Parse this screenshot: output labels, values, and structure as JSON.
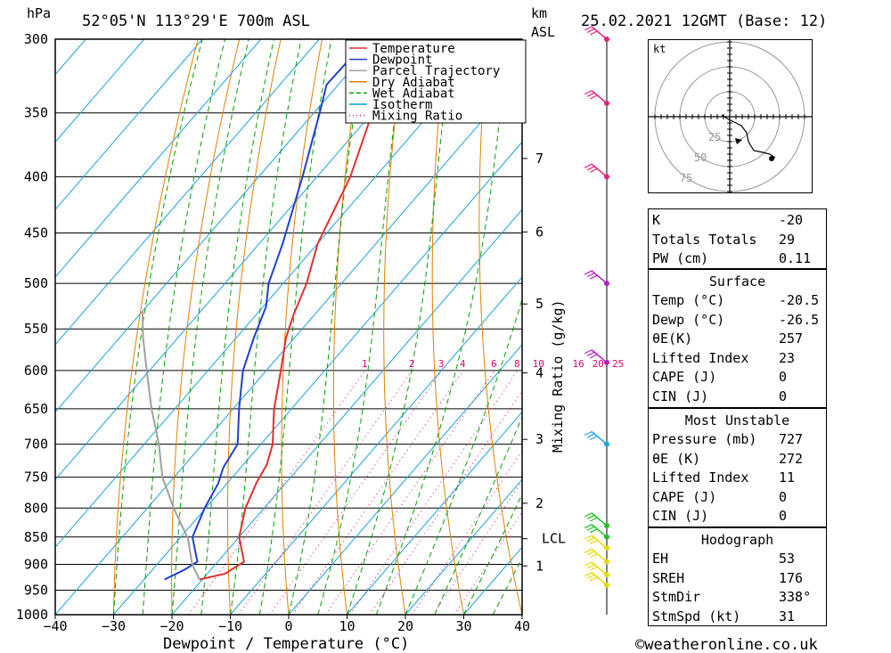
{
  "header": {
    "hpa_label": "hPa",
    "location": "52°05'N  113°29'E  700m  ASL",
    "km_label": "km",
    "asl_label": "ASL",
    "datetime": "25.02.2021  12GMT  (Base: 12)"
  },
  "legend": {
    "items": [
      {
        "label": "Temperature",
        "color": "#e03030",
        "style": "solid"
      },
      {
        "label": "Dewpoint",
        "color": "#2040d0",
        "style": "solid"
      },
      {
        "label": "Parcel Trajectory",
        "color": "#a0a0a0",
        "style": "solid"
      },
      {
        "label": "Dry Adiabat",
        "color": "#e08000",
        "style": "solid"
      },
      {
        "label": "Wet Adiabat",
        "color": "#00a000",
        "style": "dash"
      },
      {
        "label": "Isotherm",
        "color": "#00a0e0",
        "style": "solid"
      },
      {
        "label": "Mixing Ratio",
        "color": "#e0007a",
        "style": "dot"
      }
    ]
  },
  "chart_data": {
    "type": "line",
    "subtype": "skew-T log-P sounding",
    "xlabel": "Dewpoint / Temperature (°C)",
    "ylabel_left": "hPa",
    "ylabel_right": "Mixing Ratio (g/kg)",
    "x_ticks": [
      -40,
      -30,
      -20,
      -10,
      0,
      10,
      20,
      30,
      40
    ],
    "xlim": [
      -40,
      40
    ],
    "pressure_levels": [
      300,
      350,
      400,
      450,
      500,
      550,
      600,
      650,
      700,
      750,
      800,
      850,
      900,
      950,
      1000
    ],
    "ylim": [
      1000,
      300
    ],
    "km_ticks": [
      {
        "km": "1",
        "p": 903
      },
      {
        "km": "2",
        "p": 792
      },
      {
        "km": "3",
        "p": 693
      },
      {
        "km": "4",
        "p": 603
      },
      {
        "km": "5",
        "p": 522
      },
      {
        "km": "6",
        "p": 449
      },
      {
        "km": "7",
        "p": 385
      }
    ],
    "lcl": {
      "label": "LCL",
      "p": 853
    },
    "mixing_ratio_labels": [
      "1",
      "2",
      "3",
      "4",
      "6",
      "8",
      "10",
      "16",
      "20",
      "25"
    ],
    "series": [
      {
        "name": "Temperature",
        "color": "#e03030",
        "points": [
          [
            -20.5,
            929
          ],
          [
            -17,
            918
          ],
          [
            -15.5,
            895
          ],
          [
            -20,
            850
          ],
          [
            -23.2,
            800
          ],
          [
            -25,
            760
          ],
          [
            -26,
            730
          ],
          [
            -28,
            700
          ],
          [
            -33,
            650
          ],
          [
            -37.5,
            600
          ],
          [
            -41.5,
            560
          ],
          [
            -43.5,
            535
          ],
          [
            -46,
            500
          ],
          [
            -50,
            460
          ],
          [
            -54.3,
            400
          ],
          [
            -60,
            350
          ],
          [
            -62.5,
            330
          ],
          [
            -63,
            300
          ]
        ]
      },
      {
        "name": "Dewpoint",
        "color": "#2040d0",
        "points": [
          [
            -26.5,
            929
          ],
          [
            -24.5,
            910
          ],
          [
            -23.5,
            895
          ],
          [
            -28,
            850
          ],
          [
            -30.2,
            800
          ],
          [
            -31.5,
            760
          ],
          [
            -33,
            735
          ],
          [
            -34,
            700
          ],
          [
            -39,
            650
          ],
          [
            -44,
            600
          ],
          [
            -47,
            560
          ],
          [
            -49.5,
            525
          ],
          [
            -52.5,
            500
          ],
          [
            -56,
            460
          ],
          [
            -62.5,
            400
          ],
          [
            -69,
            350
          ],
          [
            -72,
            330
          ],
          [
            -71.7,
            300
          ]
        ]
      },
      {
        "name": "Parcel Trajectory",
        "color": "#a0a0a0",
        "points": [
          [
            -20.5,
            929
          ],
          [
            -24,
            900
          ],
          [
            -28.5,
            853
          ],
          [
            -35.5,
            800
          ],
          [
            -42,
            750
          ],
          [
            -47.5,
            700
          ],
          [
            -54,
            650
          ],
          [
            -60.5,
            600
          ],
          [
            -66,
            560
          ],
          [
            -70,
            530
          ]
        ]
      }
    ]
  },
  "winds": {
    "barbs": [
      {
        "p": 940,
        "color": "#e8d800"
      },
      {
        "p": 920,
        "color": "#e8d800"
      },
      {
        "p": 895,
        "color": "#e8d800"
      },
      {
        "p": 870,
        "color": "#e8d800"
      },
      {
        "p": 850,
        "color": "#20c020"
      },
      {
        "p": 830,
        "color": "#20c020"
      },
      {
        "p": 700,
        "color": "#20a8e0"
      },
      {
        "p": 590,
        "color": "#b020c0"
      },
      {
        "p": 500,
        "color": "#b020c0"
      },
      {
        "p": 400,
        "color": "#e0207a"
      },
      {
        "p": 343,
        "color": "#e0207a"
      },
      {
        "p": 300,
        "color": "#e0207a"
      }
    ]
  },
  "hodograph": {
    "unit_label": "kt",
    "ring_labels": [
      "25",
      "50",
      "75"
    ]
  },
  "indices": {
    "top": [
      {
        "label": "K",
        "value": "-20"
      },
      {
        "label": "Totals Totals",
        "value": "29"
      },
      {
        "label": "PW (cm)",
        "value": "0.11"
      }
    ],
    "surface": {
      "title": "Surface",
      "rows": [
        {
          "label": "Temp (°C)",
          "value": "-20.5"
        },
        {
          "label": "Dewp (°C)",
          "value": "-26.5"
        },
        {
          "label": "θE(K)",
          "value": "257"
        },
        {
          "label": "Lifted Index",
          "value": "23"
        },
        {
          "label": "CAPE (J)",
          "value": "0"
        },
        {
          "label": "CIN (J)",
          "value": "0"
        }
      ]
    },
    "most_unstable": {
      "title": "Most Unstable",
      "rows": [
        {
          "label": "Pressure (mb)",
          "value": "727"
        },
        {
          "label": "θE (K)",
          "value": "272"
        },
        {
          "label": "Lifted Index",
          "value": "11"
        },
        {
          "label": "CAPE (J)",
          "value": "0"
        },
        {
          "label": "CIN (J)",
          "value": "0"
        }
      ]
    },
    "hodograph": {
      "title": "Hodograph",
      "rows": [
        {
          "label": "EH",
          "value": "53"
        },
        {
          "label": "SREH",
          "value": "176"
        },
        {
          "label": "StmDir",
          "value": "338°"
        },
        {
          "label": "StmSpd (kt)",
          "value": "31"
        }
      ]
    }
  },
  "footer": {
    "copyright": "©weatheronline.co.uk"
  }
}
